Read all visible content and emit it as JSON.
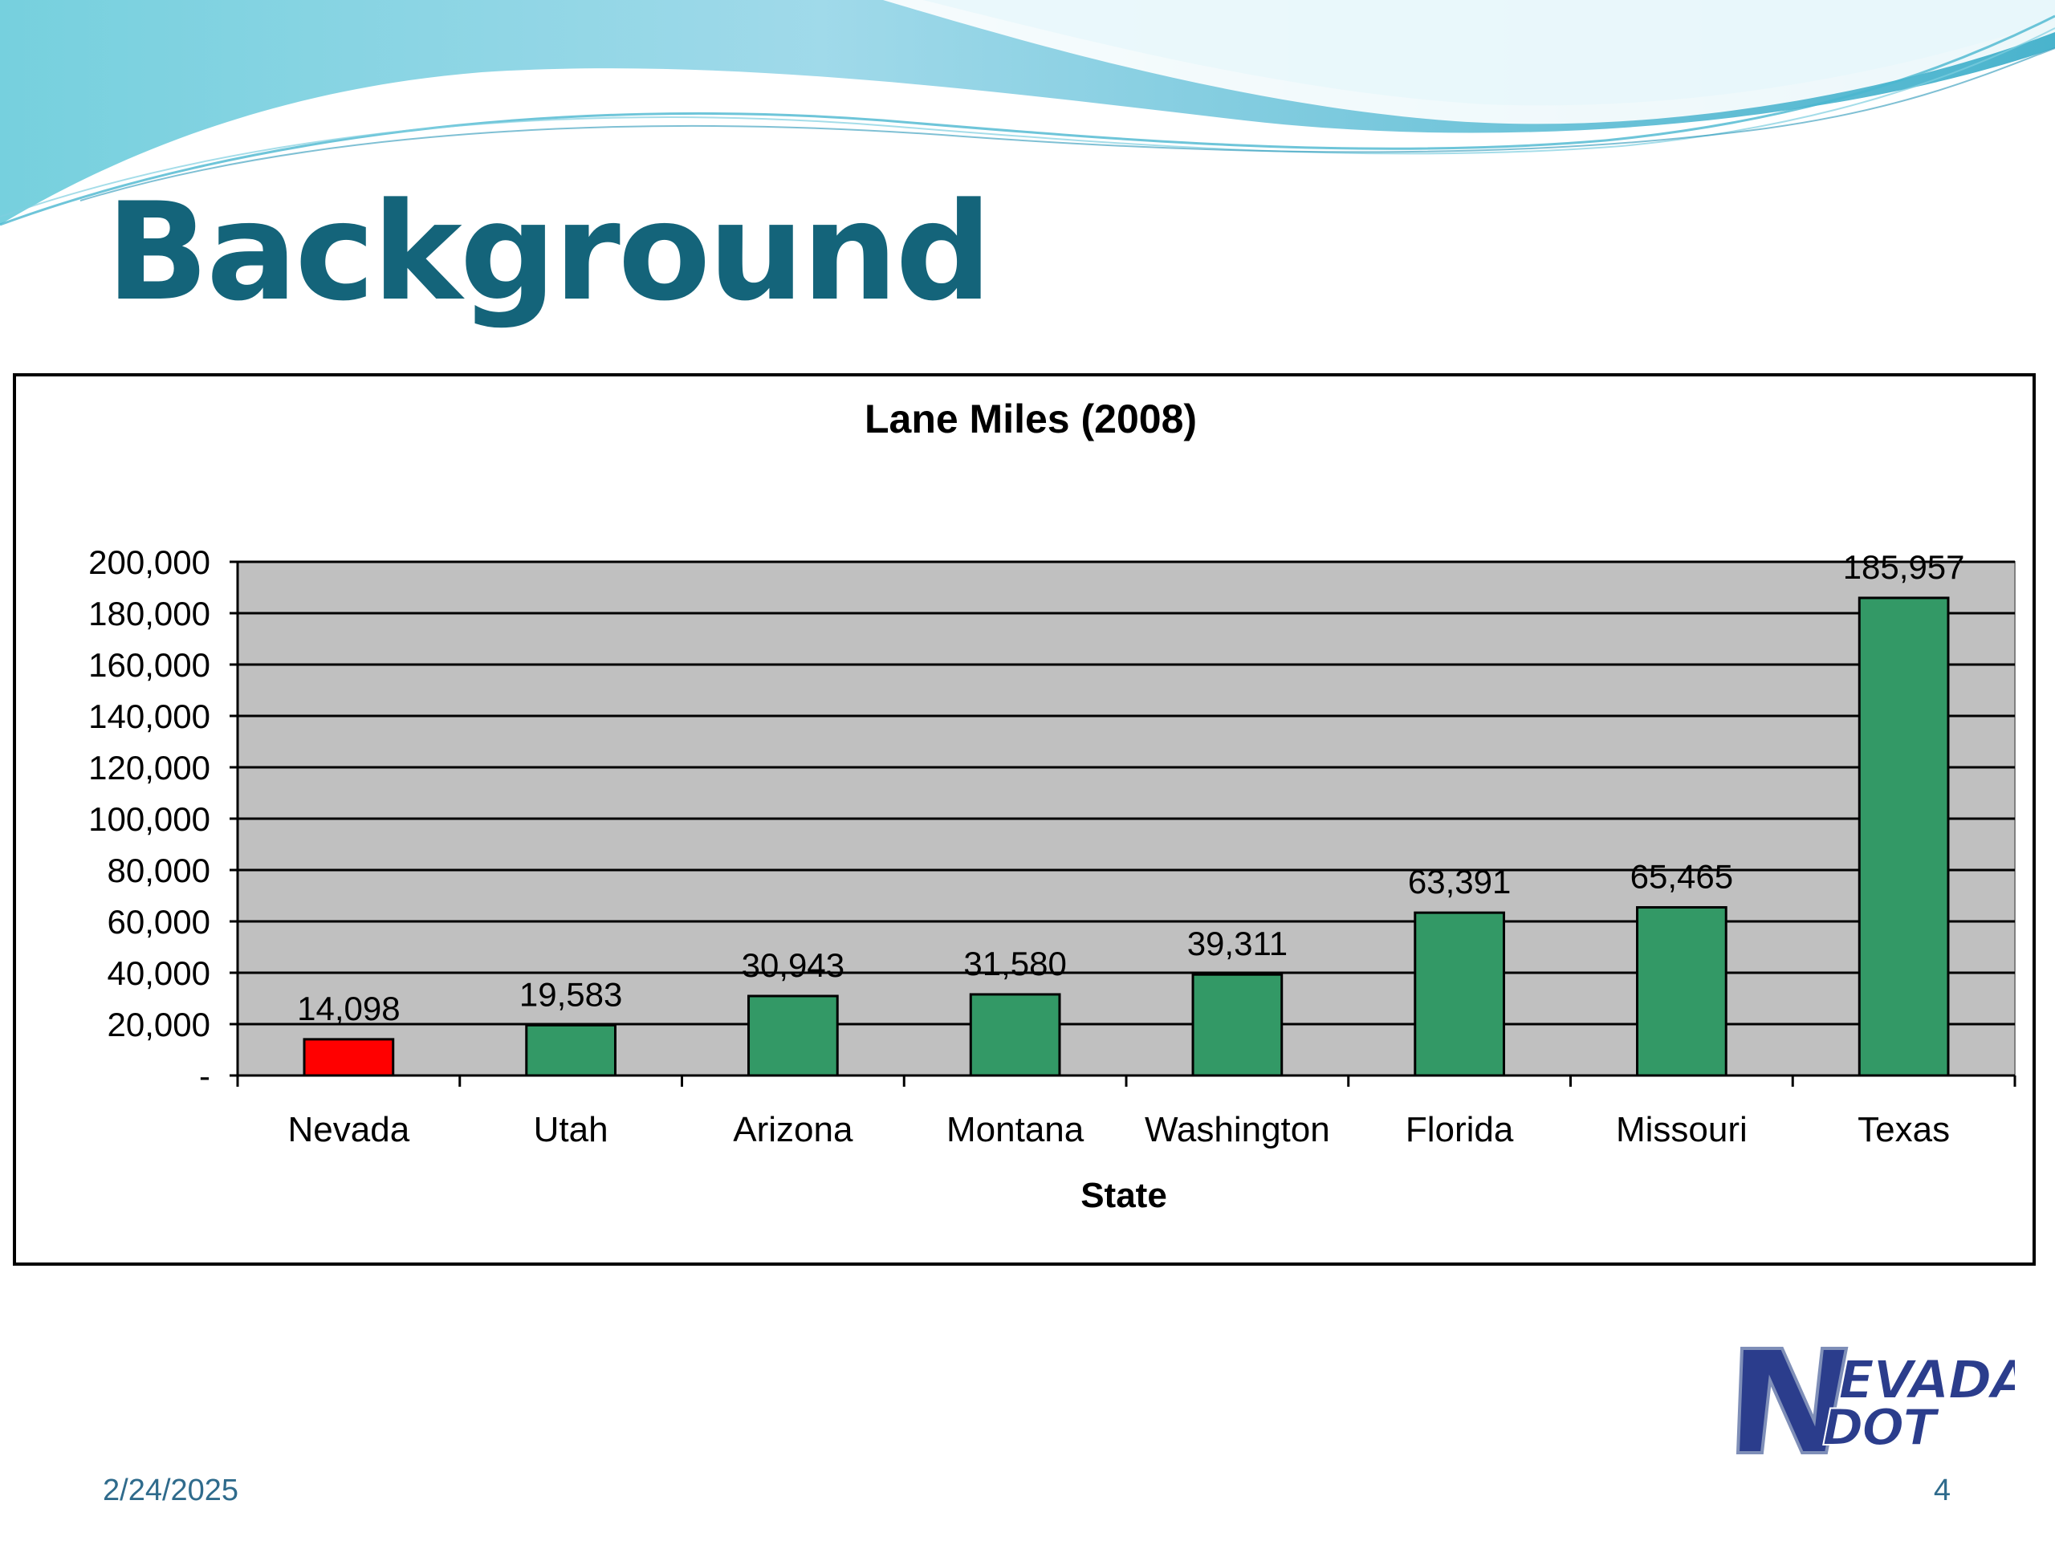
{
  "slide": {
    "title": "Background",
    "date": "2/24/2025",
    "page_number": "4",
    "logo_text_line1": "EVADA",
    "logo_text_line2": "DOT",
    "logo_letter": "N",
    "title_color": "#14647a",
    "footer_color": "#2f6b8c"
  },
  "chart_data": {
    "type": "bar",
    "title": "Lane Miles (2008)",
    "xlabel": "State",
    "ylabel": "",
    "categories": [
      "Nevada",
      "Utah",
      "Arizona",
      "Montana",
      "Washington",
      "Florida",
      "Missouri",
      "Texas"
    ],
    "values": [
      14098,
      19583,
      30943,
      31580,
      39311,
      63391,
      65465,
      185957
    ],
    "value_labels": [
      "14,098",
      "19,583",
      "30,943",
      "31,580",
      "39,311",
      "63,391",
      "65,465",
      "185,957"
    ],
    "ylim": [
      0,
      200000
    ],
    "yticks": [
      0,
      20000,
      40000,
      60000,
      80000,
      100000,
      120000,
      140000,
      160000,
      180000,
      200000
    ],
    "ytick_labels": [
      "-",
      "20,000",
      "40,000",
      "60,000",
      "80,000",
      "100,000",
      "120,000",
      "140,000",
      "160,000",
      "180,000",
      "200,000"
    ],
    "grid": true,
    "legend": "none",
    "plot_background": "#c0c0c0",
    "bar_colors": [
      "#ff0000",
      "#339966",
      "#339966",
      "#339966",
      "#339966",
      "#339966",
      "#339966",
      "#339966"
    ]
  }
}
